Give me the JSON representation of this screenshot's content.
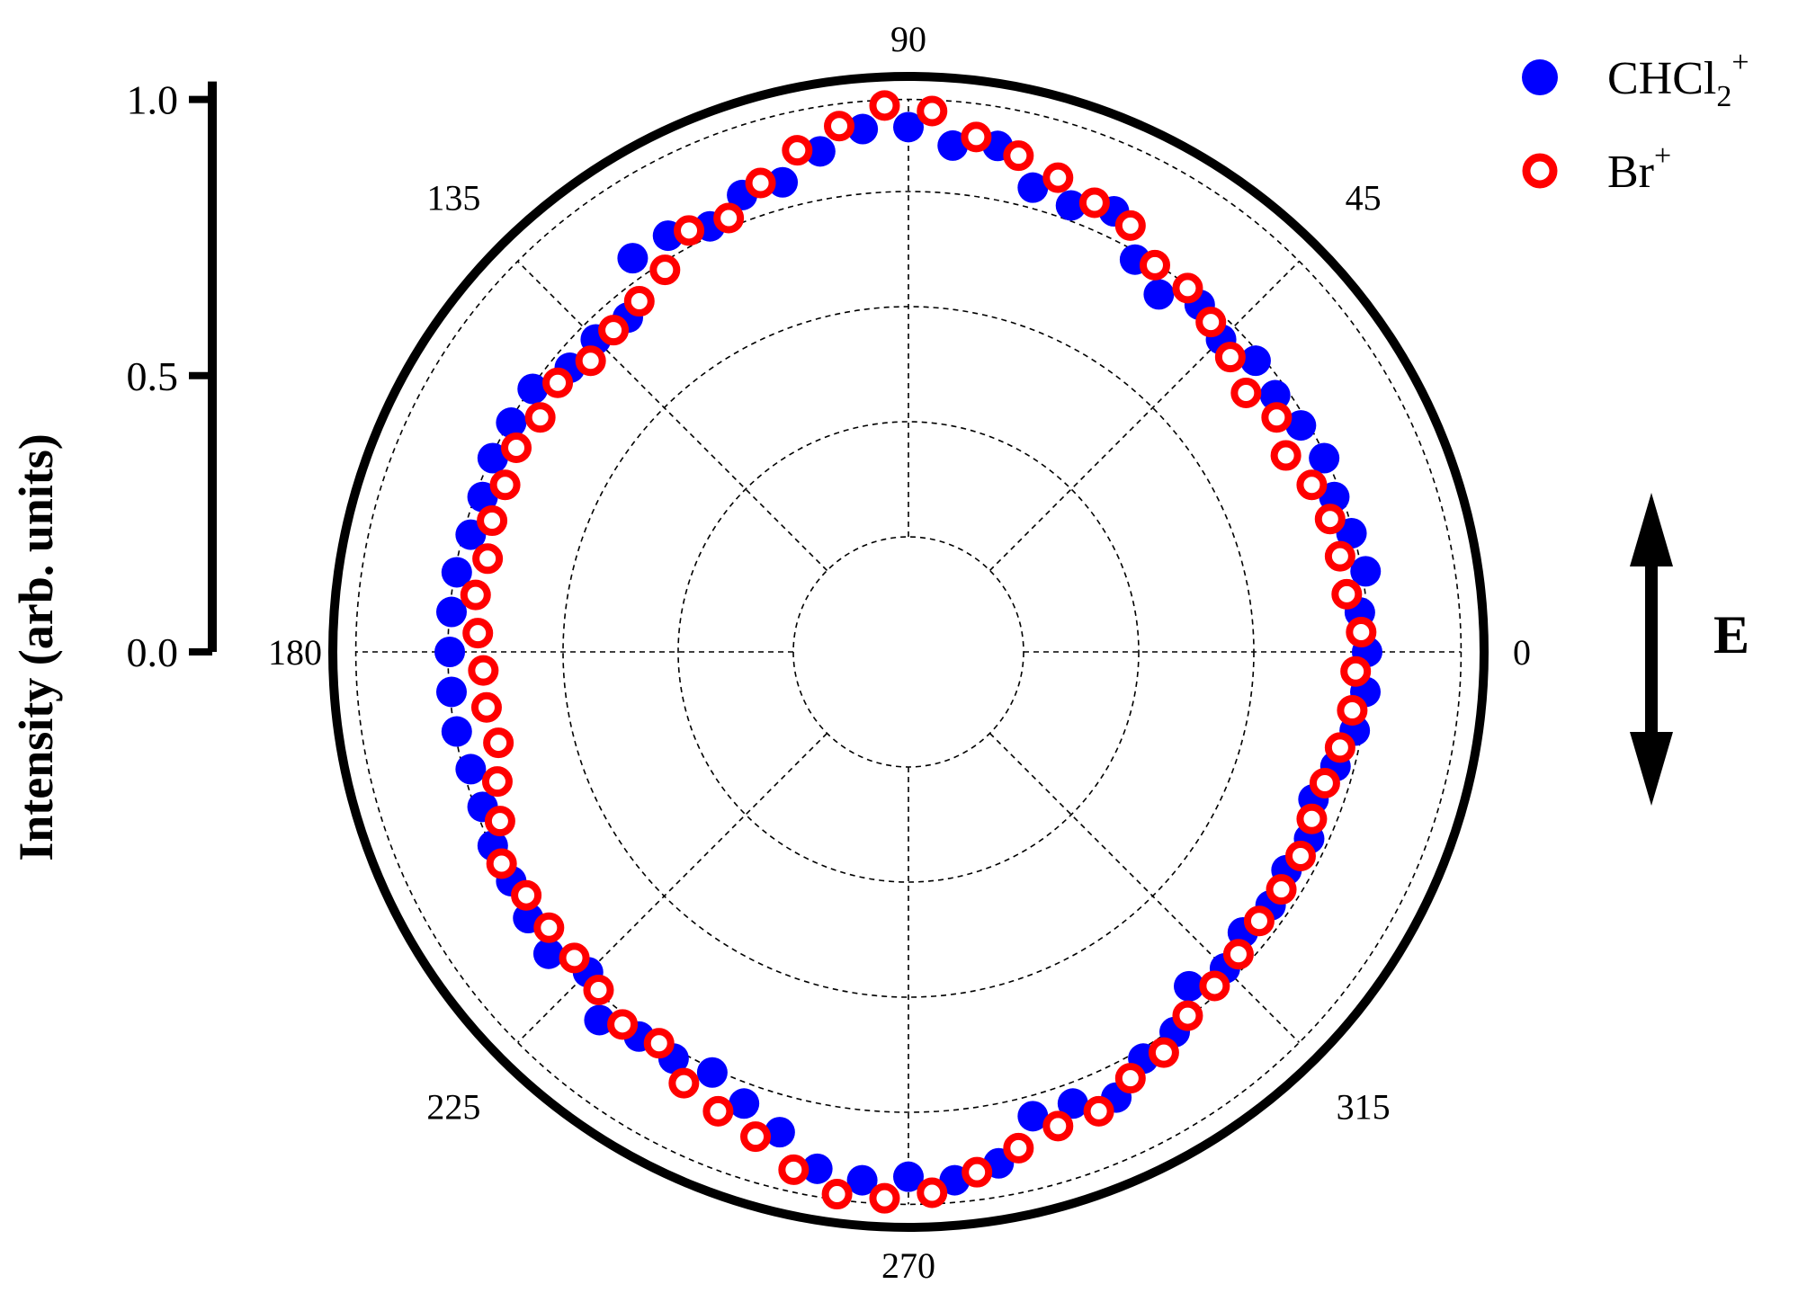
{
  "chart_data": {
    "type": "scatter",
    "subtype": "polar",
    "title": "",
    "ylabel": "Intensity (arb. units)",
    "r_axis": {
      "ylim": [
        0,
        1.0
      ],
      "ticks": [
        0.0,
        0.5,
        1.0
      ],
      "tick_labels": [
        "0.0",
        "0.5",
        "1.0"
      ]
    },
    "angle_axis": {
      "unit": "degrees",
      "ticks": [
        0,
        45,
        90,
        135,
        180,
        225,
        270,
        315
      ],
      "tick_labels": [
        "0",
        "45",
        "90",
        "135",
        "180",
        "225",
        "270",
        "315"
      ]
    },
    "grid": true,
    "legend": {
      "placement": "top-right",
      "entries": [
        {
          "series": "CHCl2+",
          "text": "CHCl",
          "sub": "2",
          "sup": "+",
          "marker": "filled-circle",
          "color": "#0000ff"
        },
        {
          "series": "Br+",
          "text": "Br",
          "sub": "",
          "sup": "+",
          "marker": "open-circle",
          "color": "#ff0000"
        }
      ]
    },
    "annotation": {
      "label": "E",
      "description": "double-headed vertical arrow"
    },
    "series": [
      {
        "name": "CHCl2+",
        "marker": "filled-circle",
        "color": "#0000ff",
        "theta": [
          0,
          5,
          10,
          15,
          20,
          25,
          30,
          35,
          40,
          45,
          50,
          55,
          60,
          65,
          70,
          75,
          80,
          85,
          90,
          95,
          100,
          105,
          110,
          115,
          120,
          125,
          130,
          135,
          140,
          145,
          150,
          155,
          160,
          165,
          170,
          175,
          180,
          185,
          190,
          195,
          200,
          205,
          210,
          215,
          220,
          225,
          230,
          235,
          240,
          245,
          250,
          255,
          260,
          265,
          270,
          275,
          280,
          285,
          290,
          295,
          300,
          305,
          310,
          315,
          320,
          325,
          330,
          335,
          340,
          345,
          350,
          355
        ],
        "r": [
          0.83,
          0.82,
          0.84,
          0.83,
          0.82,
          0.83,
          0.82,
          0.81,
          0.82,
          0.8,
          0.82,
          0.79,
          0.82,
          0.88,
          0.86,
          0.87,
          0.93,
          0.92,
          0.95,
          0.95,
          0.92,
          0.88,
          0.88,
          0.85,
          0.87,
          0.87,
          0.79,
          0.8,
          0.8,
          0.83,
          0.83,
          0.83,
          0.82,
          0.82,
          0.83,
          0.83,
          0.83,
          0.83,
          0.83,
          0.82,
          0.82,
          0.83,
          0.83,
          0.84,
          0.85,
          0.82,
          0.87,
          0.85,
          0.85,
          0.84,
          0.87,
          0.9,
          0.95,
          0.96,
          0.95,
          0.96,
          0.94,
          0.87,
          0.87,
          0.89,
          0.85,
          0.84,
          0.79,
          0.81,
          0.79,
          0.8,
          0.79,
          0.8,
          0.78,
          0.8,
          0.82,
          0.83
        ]
      },
      {
        "name": "Br+",
        "marker": "open-circle",
        "color": "#ff0000",
        "theta": [
          2.5,
          7.5,
          12.5,
          17.5,
          22.5,
          27.5,
          32.5,
          37.5,
          42.5,
          47.5,
          52.5,
          57.5,
          62.5,
          67.5,
          72.5,
          77.5,
          82.5,
          87.5,
          92.5,
          97.5,
          102.5,
          107.5,
          112.5,
          117.5,
          122.5,
          127.5,
          132.5,
          137.5,
          142.5,
          147.5,
          152.5,
          157.5,
          162.5,
          167.5,
          172.5,
          177.5,
          182.5,
          187.5,
          192.5,
          197.5,
          202.5,
          207.5,
          212.5,
          217.5,
          222.5,
          227.5,
          232.5,
          237.5,
          242.5,
          247.5,
          252.5,
          257.5,
          262.5,
          267.5,
          272.5,
          277.5,
          282.5,
          287.5,
          292.5,
          297.5,
          302.5,
          307.5,
          312.5,
          317.5,
          322.5,
          327.5,
          332.5,
          337.5,
          342.5,
          347.5,
          352.5,
          357.5
        ],
        "r": [
          0.82,
          0.8,
          0.8,
          0.8,
          0.79,
          0.77,
          0.79,
          0.77,
          0.79,
          0.81,
          0.83,
          0.83,
          0.87,
          0.88,
          0.9,
          0.92,
          0.94,
          0.98,
          0.99,
          0.96,
          0.93,
          0.89,
          0.85,
          0.86,
          0.82,
          0.8,
          0.79,
          0.78,
          0.8,
          0.79,
          0.8,
          0.79,
          0.79,
          0.78,
          0.79,
          0.78,
          0.77,
          0.77,
          0.76,
          0.78,
          0.8,
          0.83,
          0.82,
          0.82,
          0.82,
          0.83,
          0.85,
          0.84,
          0.88,
          0.9,
          0.92,
          0.96,
          0.99,
          0.99,
          0.98,
          0.95,
          0.92,
          0.9,
          0.9,
          0.87,
          0.86,
          0.83,
          0.82,
          0.81,
          0.8,
          0.8,
          0.8,
          0.79,
          0.79,
          0.8,
          0.81,
          0.81
        ]
      }
    ]
  }
}
